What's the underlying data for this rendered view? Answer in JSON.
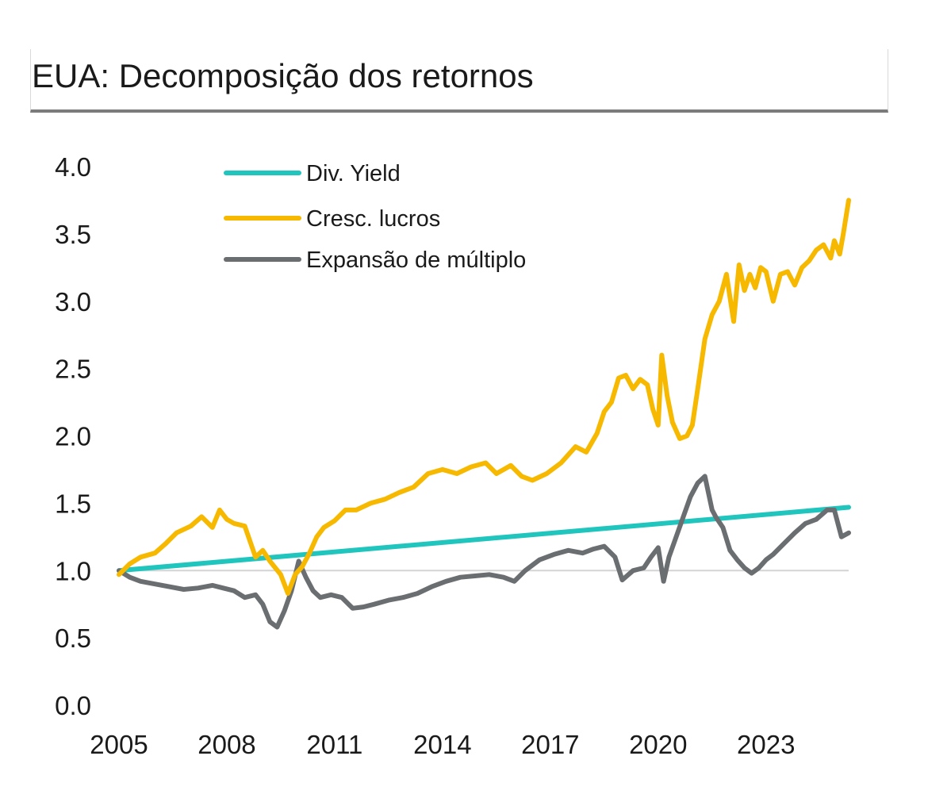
{
  "title": "EUA: Decomposição dos retornos",
  "chart_data": {
    "type": "line",
    "title": "EUA: Decomposição dos retornos",
    "xlabel": "",
    "ylabel": "",
    "xlim": [
      2005.0,
      2025.3
    ],
    "ylim": [
      0.0,
      4.0
    ],
    "grid": false,
    "reference_line": 1.0,
    "legend_position": "top-left",
    "x_ticks": [
      2005,
      2008,
      2011,
      2014,
      2017,
      2020,
      2023
    ],
    "x_tick_labels": [
      "2005",
      "2008",
      "2011",
      "2014",
      "2017",
      "2020",
      "2023"
    ],
    "y_ticks": [
      0.0,
      0.5,
      1.0,
      1.5,
      2.0,
      2.5,
      3.0,
      3.5,
      4.0
    ],
    "y_tick_labels": [
      "0.0",
      "0.5",
      "1.0",
      "1.5",
      "2.0",
      "2.5",
      "3.0",
      "3.5",
      "4.0"
    ],
    "series": [
      {
        "name": "Div. Yield",
        "color": "#20c5bd",
        "x": [
          2005.0,
          2025.3
        ],
        "y": [
          1.0,
          1.47
        ]
      },
      {
        "name": "Cresc. lucros",
        "color": "#f7b800",
        "x": [
          2005.0,
          2005.3,
          2005.6,
          2006.0,
          2006.3,
          2006.6,
          2007.0,
          2007.3,
          2007.6,
          2007.8,
          2008.0,
          2008.2,
          2008.5,
          2008.8,
          2009.0,
          2009.2,
          2009.5,
          2009.7,
          2009.9,
          2010.1,
          2010.3,
          2010.5,
          2010.7,
          2011.0,
          2011.3,
          2011.6,
          2012.0,
          2012.4,
          2012.8,
          2013.2,
          2013.6,
          2014.0,
          2014.4,
          2014.8,
          2015.2,
          2015.5,
          2015.9,
          2016.2,
          2016.5,
          2016.9,
          2017.3,
          2017.7,
          2018.0,
          2018.3,
          2018.5,
          2018.7,
          2018.9,
          2019.1,
          2019.3,
          2019.5,
          2019.7,
          2019.85,
          2020.0,
          2020.1,
          2020.25,
          2020.4,
          2020.6,
          2020.8,
          2020.95,
          2021.1,
          2021.3,
          2021.5,
          2021.7,
          2021.9,
          2022.1,
          2022.25,
          2022.4,
          2022.55,
          2022.7,
          2022.85,
          2023.0,
          2023.2,
          2023.4,
          2023.6,
          2023.8,
          2024.0,
          2024.2,
          2024.4,
          2024.6,
          2024.8,
          2024.9,
          2025.05,
          2025.15,
          2025.3
        ],
        "y": [
          0.97,
          1.05,
          1.1,
          1.13,
          1.2,
          1.28,
          1.33,
          1.4,
          1.32,
          1.45,
          1.38,
          1.35,
          1.33,
          1.1,
          1.15,
          1.07,
          0.97,
          0.83,
          0.97,
          1.03,
          1.13,
          1.25,
          1.32,
          1.37,
          1.45,
          1.45,
          1.5,
          1.53,
          1.58,
          1.62,
          1.72,
          1.75,
          1.72,
          1.77,
          1.8,
          1.72,
          1.78,
          1.7,
          1.67,
          1.72,
          1.8,
          1.92,
          1.88,
          2.02,
          2.18,
          2.25,
          2.43,
          2.45,
          2.35,
          2.42,
          2.38,
          2.2,
          2.08,
          2.6,
          2.3,
          2.1,
          1.98,
          2.0,
          2.08,
          2.35,
          2.72,
          2.9,
          3.0,
          3.2,
          2.85,
          3.27,
          3.08,
          3.2,
          3.1,
          3.25,
          3.22,
          3.0,
          3.2,
          3.22,
          3.12,
          3.25,
          3.3,
          3.38,
          3.42,
          3.32,
          3.45,
          3.35,
          3.5,
          3.75
        ]
      },
      {
        "name": "Expansão de múltiplo",
        "color": "#6b6e71",
        "x": [
          2005.0,
          2005.3,
          2005.6,
          2006.0,
          2006.4,
          2006.8,
          2007.2,
          2007.6,
          2007.9,
          2008.2,
          2008.5,
          2008.8,
          2009.0,
          2009.2,
          2009.4,
          2009.6,
          2009.8,
          2010.0,
          2010.2,
          2010.4,
          2010.6,
          2010.9,
          2011.2,
          2011.5,
          2011.8,
          2012.1,
          2012.5,
          2012.9,
          2013.3,
          2013.7,
          2014.1,
          2014.5,
          2014.9,
          2015.3,
          2015.7,
          2016.0,
          2016.3,
          2016.7,
          2017.1,
          2017.5,
          2017.9,
          2018.2,
          2018.5,
          2018.8,
          2019.0,
          2019.3,
          2019.6,
          2019.8,
          2020.0,
          2020.15,
          2020.3,
          2020.5,
          2020.7,
          2020.9,
          2021.1,
          2021.3,
          2021.5,
          2021.6,
          2021.8,
          2022.0,
          2022.2,
          2022.4,
          2022.6,
          2022.8,
          2023.0,
          2023.2,
          2023.5,
          2023.8,
          2024.1,
          2024.4,
          2024.7,
          2024.9,
          2025.1,
          2025.3
        ],
        "y": [
          1.0,
          0.95,
          0.92,
          0.9,
          0.88,
          0.86,
          0.87,
          0.89,
          0.87,
          0.85,
          0.8,
          0.82,
          0.75,
          0.62,
          0.58,
          0.7,
          0.85,
          1.07,
          0.95,
          0.85,
          0.8,
          0.82,
          0.8,
          0.72,
          0.73,
          0.75,
          0.78,
          0.8,
          0.83,
          0.88,
          0.92,
          0.95,
          0.96,
          0.97,
          0.95,
          0.92,
          1.0,
          1.08,
          1.12,
          1.15,
          1.13,
          1.16,
          1.18,
          1.1,
          0.93,
          1.0,
          1.02,
          1.1,
          1.17,
          0.92,
          1.1,
          1.25,
          1.4,
          1.55,
          1.65,
          1.7,
          1.45,
          1.4,
          1.32,
          1.15,
          1.08,
          1.02,
          0.98,
          1.02,
          1.08,
          1.12,
          1.2,
          1.28,
          1.35,
          1.38,
          1.45,
          1.45,
          1.25,
          1.28
        ]
      }
    ]
  }
}
